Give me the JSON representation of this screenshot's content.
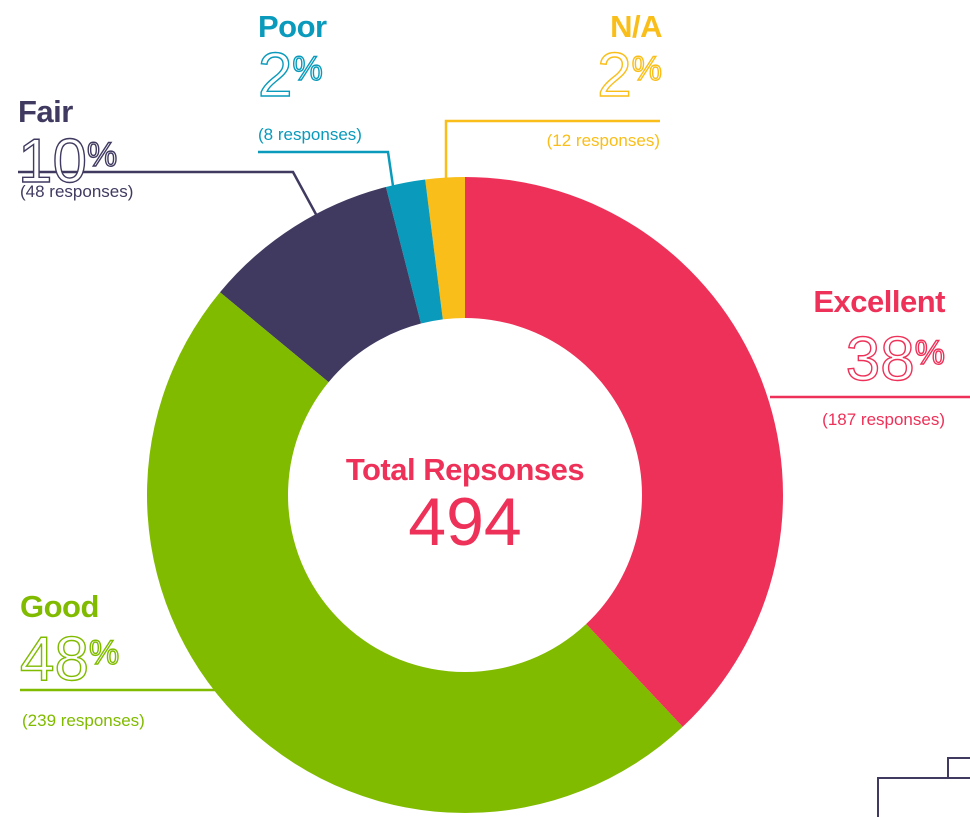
{
  "chart_data": {
    "type": "donut",
    "title": "Total Repsonses",
    "total": 494,
    "categories": [
      "Excellent",
      "Good",
      "Fair",
      "Poor",
      "N/A"
    ],
    "values": [
      38,
      48,
      10,
      2,
      2
    ],
    "value_labels": [
      "38%",
      "48%",
      "10%",
      "2%",
      "2%"
    ],
    "count_labels": [
      "(187 responses)",
      "(239 responses)",
      "(48 responses)",
      "(8 responses)",
      "(12 responses)"
    ],
    "colors": [
      "#ee3158",
      "#80bb00",
      "#403a60",
      "#0a9abb",
      "#f9be19"
    ]
  }
}
